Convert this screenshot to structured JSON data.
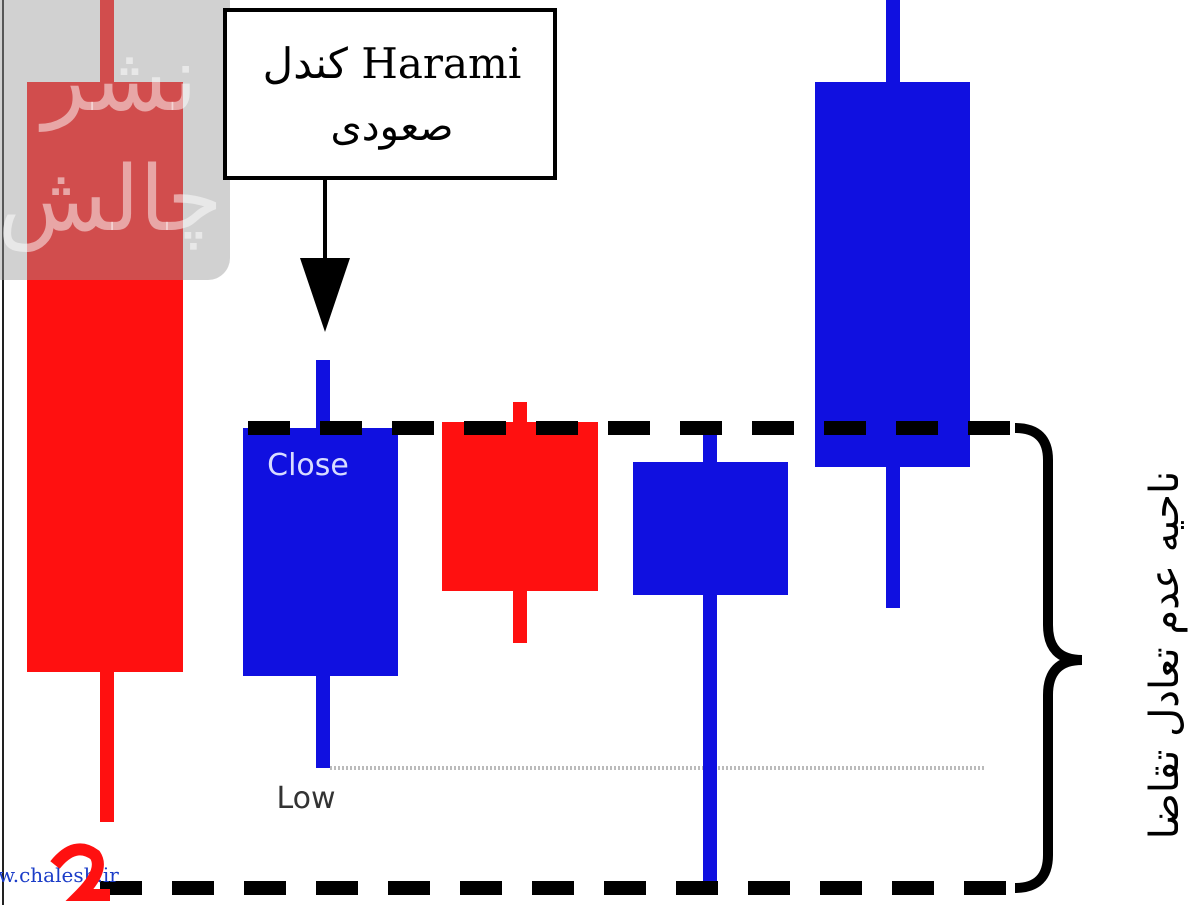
{
  "callout": {
    "line1": "کندل Harami",
    "line2": "صعودی"
  },
  "labels": {
    "close": "Close",
    "low": "Low"
  },
  "zone_label": "ناحیه عدم تعادل تقاضا",
  "watermark": {
    "text1": "نشر",
    "text2": "چالش",
    "url": "w.chalesh.ir"
  }
}
